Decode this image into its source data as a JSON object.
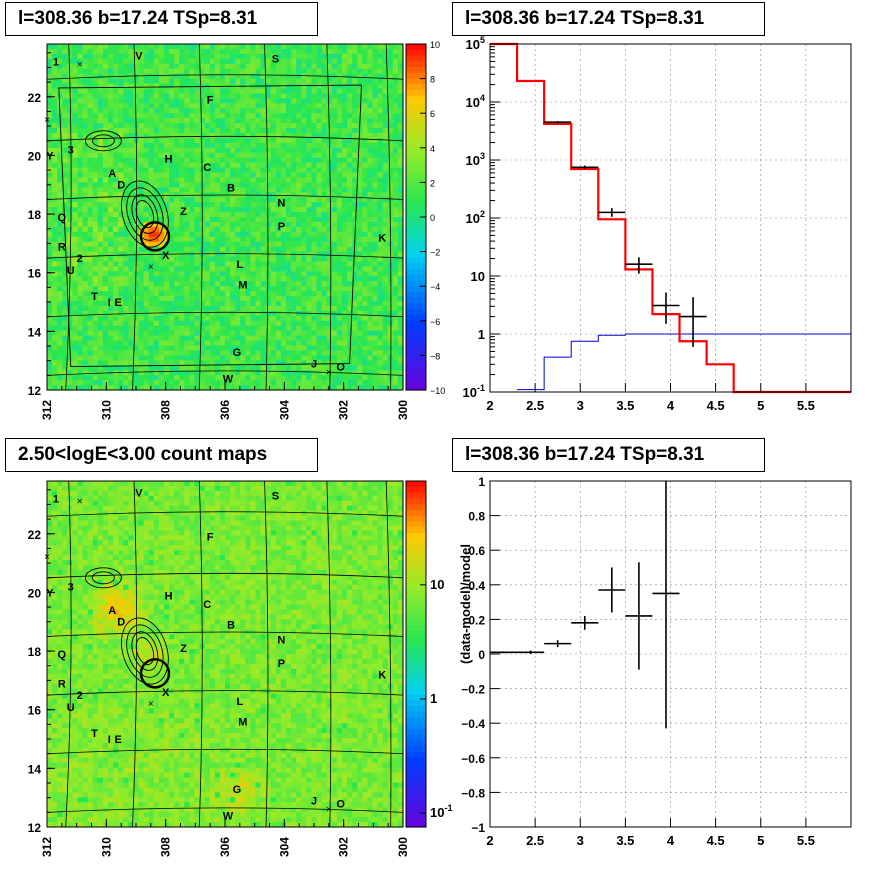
{
  "panels": {
    "top_left_title": "l=308.36 b=17.24 TSp=8.31",
    "top_right_title": "l=308.36 b=17.24 TSp=8.31",
    "bottom_left_title": "2.50<logE<3.00 count maps",
    "bottom_right_title": "l=308.36 b=17.24 TSp=8.31"
  },
  "colors": {
    "frame": "#000000",
    "data": "#000000",
    "model": "#ff0000",
    "background_model": "#0000cc",
    "grid": "#888888"
  },
  "chart_data": [
    {
      "type": "heatmap",
      "panel": "tsmap",
      "x_ticks": [
        "312",
        "310",
        "308",
        "306",
        "304",
        "302",
        "300"
      ],
      "y_ticks": [
        "12",
        "14",
        "16",
        "18",
        "20",
        "22"
      ],
      "xlim": [
        312,
        300
      ],
      "ylim": [
        12,
        23.8
      ],
      "colorbar_ticks": [
        "10",
        "8",
        "6",
        "4",
        "2",
        "0",
        "−2",
        "−4",
        "−6",
        "−8",
        "−10"
      ],
      "colorbar_range": [
        -10,
        10
      ],
      "source_labels": [
        {
          "text": "1",
          "l": 311.7,
          "b": 23.2
        },
        {
          "text": "V",
          "l": 308.9,
          "b": 23.4
        },
        {
          "text": "S",
          "l": 304.3,
          "b": 23.3
        },
        {
          "text": "F",
          "l": 306.5,
          "b": 21.9
        },
        {
          "text": "3",
          "l": 311.2,
          "b": 20.2
        },
        {
          "text": "Y",
          "l": 311.9,
          "b": 20.0
        },
        {
          "text": "H",
          "l": 307.9,
          "b": 19.9
        },
        {
          "text": "C",
          "l": 306.6,
          "b": 19.6
        },
        {
          "text": "A",
          "l": 309.8,
          "b": 19.4
        },
        {
          "text": "D",
          "l": 309.5,
          "b": 19.0
        },
        {
          "text": "B",
          "l": 305.8,
          "b": 18.9
        },
        {
          "text": "N",
          "l": 304.1,
          "b": 18.4
        },
        {
          "text": "Z",
          "l": 307.4,
          "b": 18.1
        },
        {
          "text": "Q",
          "l": 311.5,
          "b": 17.9
        },
        {
          "text": "P",
          "l": 304.1,
          "b": 17.6
        },
        {
          "text": "K",
          "l": 300.7,
          "b": 17.2
        },
        {
          "text": "R",
          "l": 311.5,
          "b": 16.9
        },
        {
          "text": "X",
          "l": 308.0,
          "b": 16.6
        },
        {
          "text": "2",
          "l": 310.9,
          "b": 16.5
        },
        {
          "text": "L",
          "l": 305.5,
          "b": 16.3
        },
        {
          "text": "U",
          "l": 311.2,
          "b": 16.1
        },
        {
          "text": "M",
          "l": 305.4,
          "b": 15.6
        },
        {
          "text": "T",
          "l": 310.4,
          "b": 15.2
        },
        {
          "text": "I",
          "l": 309.9,
          "b": 15.0
        },
        {
          "text": "E",
          "l": 309.6,
          "b": 15.0
        },
        {
          "text": "G",
          "l": 305.6,
          "b": 13.3
        },
        {
          "text": "J",
          "l": 303.0,
          "b": 12.9
        },
        {
          "text": "O",
          "l": 302.1,
          "b": 12.8
        },
        {
          "text": "W",
          "l": 305.9,
          "b": 12.4
        }
      ],
      "markers": [
        {
          "l": 310.9,
          "b": 23.1
        },
        {
          "l": 312.0,
          "b": 21.2
        },
        {
          "l": 308.5,
          "b": 16.2
        },
        {
          "l": 302.5,
          "b": 12.6
        }
      ],
      "circle": {
        "l": 308.36,
        "b": 17.24
      }
    },
    {
      "type": "line",
      "panel": "spectrum",
      "scale_y": "log",
      "xlim": [
        2,
        6
      ],
      "ylim": [
        0.1,
        100000
      ],
      "x_ticks": [
        "2",
        "2.5",
        "3",
        "3.5",
        "4",
        "4.5",
        "5",
        "5.5"
      ],
      "y_ticks": [
        "10^-1",
        "1",
        "10",
        "10^2",
        "10^3",
        "10^4",
        "10^5"
      ],
      "model_steps": [
        {
          "x0": 2.0,
          "x1": 2.3,
          "y": 100000
        },
        {
          "x0": 2.3,
          "x1": 2.6,
          "y": 23000
        },
        {
          "x0": 2.6,
          "x1": 2.9,
          "y": 4200
        },
        {
          "x0": 2.9,
          "x1": 3.2,
          "y": 700
        },
        {
          "x0": 3.2,
          "x1": 3.5,
          "y": 95
        },
        {
          "x0": 3.5,
          "x1": 3.8,
          "y": 13
        },
        {
          "x0": 3.8,
          "x1": 4.1,
          "y": 2.2
        },
        {
          "x0": 4.1,
          "x1": 4.4,
          "y": 0.75
        },
        {
          "x0": 4.4,
          "x1": 4.7,
          "y": 0.3
        },
        {
          "x0": 4.7,
          "x1": 6.0,
          "y": 0.1
        }
      ],
      "background_steps": [
        {
          "x0": 2.3,
          "x1": 2.6,
          "y": 0.11
        },
        {
          "x0": 2.6,
          "x1": 2.9,
          "y": 0.4
        },
        {
          "x0": 2.9,
          "x1": 3.2,
          "y": 0.75
        },
        {
          "x0": 3.2,
          "x1": 3.5,
          "y": 0.95
        },
        {
          "x0": 3.5,
          "x1": 6.0,
          "y": 1.0
        }
      ],
      "data_points": [
        {
          "x": 2.75,
          "y": 4500,
          "xerr": 0.15,
          "ylo": 4300,
          "yhi": 4700
        },
        {
          "x": 3.05,
          "y": 750,
          "xerr": 0.15,
          "ylo": 700,
          "yhi": 800
        },
        {
          "x": 3.35,
          "y": 125,
          "xerr": 0.15,
          "ylo": 105,
          "yhi": 148
        },
        {
          "x": 3.65,
          "y": 16,
          "xerr": 0.15,
          "ylo": 11,
          "yhi": 21
        },
        {
          "x": 3.95,
          "y": 3.1,
          "xerr": 0.15,
          "ylo": 1.5,
          "yhi": 5.2
        },
        {
          "x": 4.25,
          "y": 2.0,
          "xerr": 0.15,
          "ylo": 0.6,
          "yhi": 4.3
        }
      ]
    },
    {
      "type": "heatmap",
      "panel": "countmap",
      "x_ticks": [
        "312",
        "310",
        "308",
        "306",
        "304",
        "302",
        "300"
      ],
      "y_ticks": [
        "12",
        "14",
        "16",
        "18",
        "20",
        "22"
      ],
      "xlim": [
        312,
        300
      ],
      "ylim": [
        12,
        23.8
      ],
      "colorbar_ticks": [
        "10",
        "1",
        "10^-1"
      ],
      "scale": "log"
    },
    {
      "type": "scatter",
      "panel": "residuals",
      "xlim": [
        2,
        6
      ],
      "ylim": [
        -1,
        1
      ],
      "ylabel": "(data-model)/model",
      "x_ticks": [
        "2",
        "2.5",
        "3",
        "3.5",
        "4",
        "4.5",
        "5",
        "5.5"
      ],
      "y_ticks": [
        "−1",
        "−0.8",
        "−0.6",
        "−0.4",
        "−0.2",
        "0",
        "0.2",
        "0.4",
        "0.6",
        "0.8",
        "1"
      ],
      "points": [
        {
          "x": 2.15,
          "y": 0.01,
          "xerr": 0.15,
          "yerr": 0.005
        },
        {
          "x": 2.45,
          "y": 0.01,
          "xerr": 0.15,
          "yerr": 0.01
        },
        {
          "x": 2.75,
          "y": 0.06,
          "xerr": 0.15,
          "yerr": 0.02
        },
        {
          "x": 3.05,
          "y": 0.18,
          "xerr": 0.15,
          "yerr": 0.04
        },
        {
          "x": 3.35,
          "y": 0.37,
          "xerr": 0.15,
          "yerr": 0.13
        },
        {
          "x": 3.65,
          "y": 0.22,
          "xerr": 0.15,
          "yerr": 0.31
        },
        {
          "x": 3.95,
          "y": 0.35,
          "xerr": 0.15,
          "yerr": 0.78
        }
      ]
    }
  ]
}
